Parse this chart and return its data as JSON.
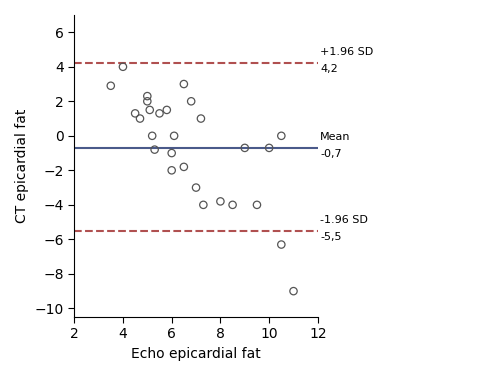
{
  "scatter_x": [
    3.5,
    4.0,
    4.5,
    4.7,
    5.0,
    5.0,
    5.1,
    5.2,
    5.3,
    5.5,
    5.8,
    6.0,
    6.0,
    6.1,
    6.5,
    6.5,
    6.8,
    7.0,
    7.2,
    7.3,
    8.0,
    8.5,
    9.0,
    9.5,
    10.0,
    10.5,
    10.5,
    11.0
  ],
  "scatter_y": [
    2.9,
    4.0,
    1.3,
    1.0,
    2.3,
    2.0,
    1.5,
    0.0,
    -0.8,
    1.3,
    1.5,
    -2.0,
    -1.0,
    0.0,
    3.0,
    -1.8,
    2.0,
    -3.0,
    1.0,
    -4.0,
    -3.8,
    -4.0,
    -0.7,
    -4.0,
    -0.7,
    0.0,
    -6.3,
    -9.0
  ],
  "mean": -0.7,
  "upper_loa": 4.2,
  "lower_loa": -5.5,
  "mean_color": "#4a5a8a",
  "loa_color": "#b05050",
  "scatter_edgecolor": "#555555",
  "xlim": [
    2,
    12
  ],
  "ylim": [
    -10.5,
    7
  ],
  "xticks": [
    2,
    4,
    6,
    8,
    10,
    12
  ],
  "yticks": [
    6,
    4,
    2,
    0,
    -2,
    -4,
    -6,
    -8,
    -10
  ],
  "xlabel": "Echo epicardial fat",
  "ylabel": "CT epicardial fat",
  "annotation_upper_label": "+1.96 SD",
  "annotation_upper_value": "4,2",
  "annotation_mean_label": "Mean",
  "annotation_mean_value": "-0,7",
  "annotation_lower_label": "-1.96 SD",
  "annotation_lower_value": "-5,5",
  "scatter_size": 28,
  "scatter_linewidth": 0.9,
  "fig_width": 5.0,
  "fig_height": 3.76,
  "dpi": 100
}
